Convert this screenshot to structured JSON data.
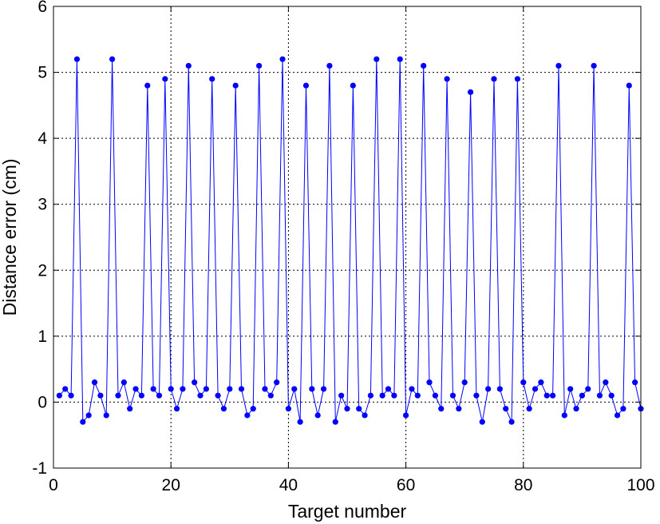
{
  "chart_data": {
    "type": "line",
    "xlabel": "Target number",
    "ylabel": "Distance error (cm)",
    "xlim": [
      0,
      100
    ],
    "ylim": [
      -1,
      6
    ],
    "xticks": [
      0,
      20,
      40,
      60,
      80,
      100
    ],
    "yticks": [
      -1,
      0,
      1,
      2,
      3,
      4,
      5,
      6
    ],
    "grid": true,
    "series_color": "#0000ff",
    "series": [
      {
        "x": [
          1,
          2,
          3,
          4,
          5,
          6,
          7,
          8,
          9,
          10,
          11,
          12,
          13,
          14,
          15,
          16,
          17,
          18,
          19,
          20,
          21,
          22,
          23,
          24,
          25,
          26,
          27,
          28,
          29,
          30,
          31,
          32,
          33,
          34,
          35,
          36,
          37,
          38,
          39,
          40,
          41,
          42,
          43,
          44,
          45,
          46,
          47,
          48,
          49,
          50,
          51,
          52,
          53,
          54,
          55,
          56,
          57,
          58,
          59,
          60,
          61,
          62,
          63,
          64,
          65,
          66,
          67,
          68,
          69,
          70,
          71,
          72,
          73,
          74,
          75,
          76,
          77,
          78,
          79,
          80,
          81,
          82,
          83,
          84,
          85,
          86,
          87,
          88,
          89,
          90,
          91,
          92,
          93,
          94,
          95,
          96,
          97,
          98,
          99,
          100
        ],
        "y": [
          0.1,
          0.2,
          0.1,
          5.2,
          -0.3,
          -0.2,
          0.3,
          0.1,
          -0.2,
          5.2,
          0.1,
          0.3,
          -0.1,
          0.2,
          0.1,
          4.8,
          0.2,
          0.1,
          4.9,
          0.2,
          -0.1,
          0.2,
          5.1,
          0.3,
          0.1,
          0.2,
          4.9,
          0.1,
          -0.1,
          0.2,
          4.8,
          0.2,
          -0.2,
          -0.1,
          5.1,
          0.2,
          0.1,
          0.3,
          5.2,
          -0.1,
          0.2,
          -0.3,
          4.8,
          0.2,
          -0.2,
          0.2,
          5.1,
          -0.3,
          0.1,
          -0.1,
          4.8,
          -0.1,
          -0.2,
          0.1,
          5.2,
          0.1,
          0.2,
          0.1,
          5.2,
          -0.2,
          0.2,
          0.1,
          5.1,
          0.3,
          0.1,
          -0.1,
          4.9,
          0.1,
          -0.1,
          0.3,
          4.7,
          0.1,
          -0.3,
          0.2,
          4.9,
          0.2,
          -0.1,
          -0.3,
          4.9,
          0.3,
          -0.1,
          0.2,
          0.3,
          0.1,
          0.1,
          5.1,
          -0.2,
          0.2,
          -0.1,
          0.1,
          0.2,
          5.1,
          0.1,
          0.3,
          0.1,
          -0.2,
          -0.1,
          4.8,
          0.3,
          -0.1
        ]
      }
    ]
  }
}
